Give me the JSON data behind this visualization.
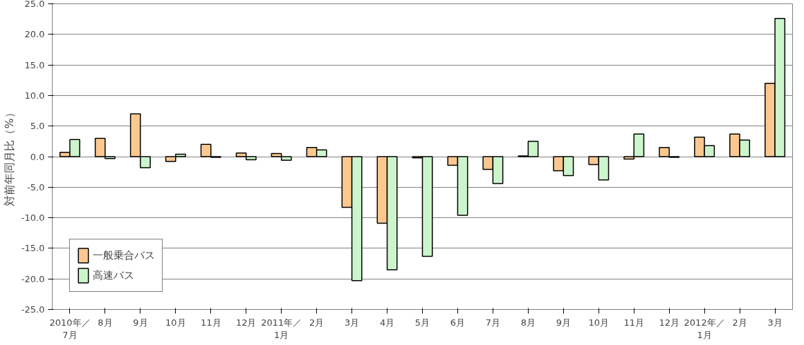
{
  "chart_data": {
    "type": "bar",
    "ylabel": "対前年同月比（%）",
    "categories": [
      "2010年／\n7月",
      "8月",
      "9月",
      "10月",
      "11月",
      "12月",
      "2011年／\n1月",
      "2月",
      "3月",
      "4月",
      "5月",
      "6月",
      "7月",
      "8月",
      "9月",
      "10月",
      "11月",
      "12月",
      "2012年／\n1月",
      "2月",
      "3月"
    ],
    "series": [
      {
        "name": "一般乗合バス",
        "color": "#fcc890",
        "values": [
          0.7,
          3.0,
          7.0,
          -0.8,
          2.0,
          0.6,
          0.5,
          1.5,
          -8.3,
          -10.9,
          -0.2,
          -1.4,
          -2.1,
          0.1,
          -2.3,
          -1.3,
          -0.4,
          1.5,
          3.2,
          3.7,
          12.0
        ]
      },
      {
        "name": "高速バス",
        "color": "#ccf5cc",
        "values": [
          2.8,
          -0.3,
          -1.8,
          0.4,
          -0.1,
          -0.5,
          -0.6,
          1.1,
          -20.3,
          -18.5,
          -16.3,
          -9.6,
          -4.4,
          2.5,
          -3.1,
          -3.8,
          3.7,
          -0.1,
          1.8,
          2.7,
          22.6
        ]
      }
    ],
    "ylim": [
      -25,
      25
    ],
    "yticks": [
      {
        "value": -25,
        "label": "-25.0"
      },
      {
        "value": -20,
        "label": "-20.0"
      },
      {
        "value": -15,
        "label": "-15.0"
      },
      {
        "value": -10,
        "label": "-10.0"
      },
      {
        "value": -5,
        "label": "-5.0"
      },
      {
        "value": 0,
        "label": "0.0"
      },
      {
        "value": 5,
        "label": "5.0"
      },
      {
        "value": 10,
        "label": "10.0"
      },
      {
        "value": 15,
        "label": "15.0"
      },
      {
        "value": 20,
        "label": "20.0"
      },
      {
        "value": 25,
        "label": "25.0"
      }
    ],
    "grid": "y",
    "legend": "bottom left"
  }
}
